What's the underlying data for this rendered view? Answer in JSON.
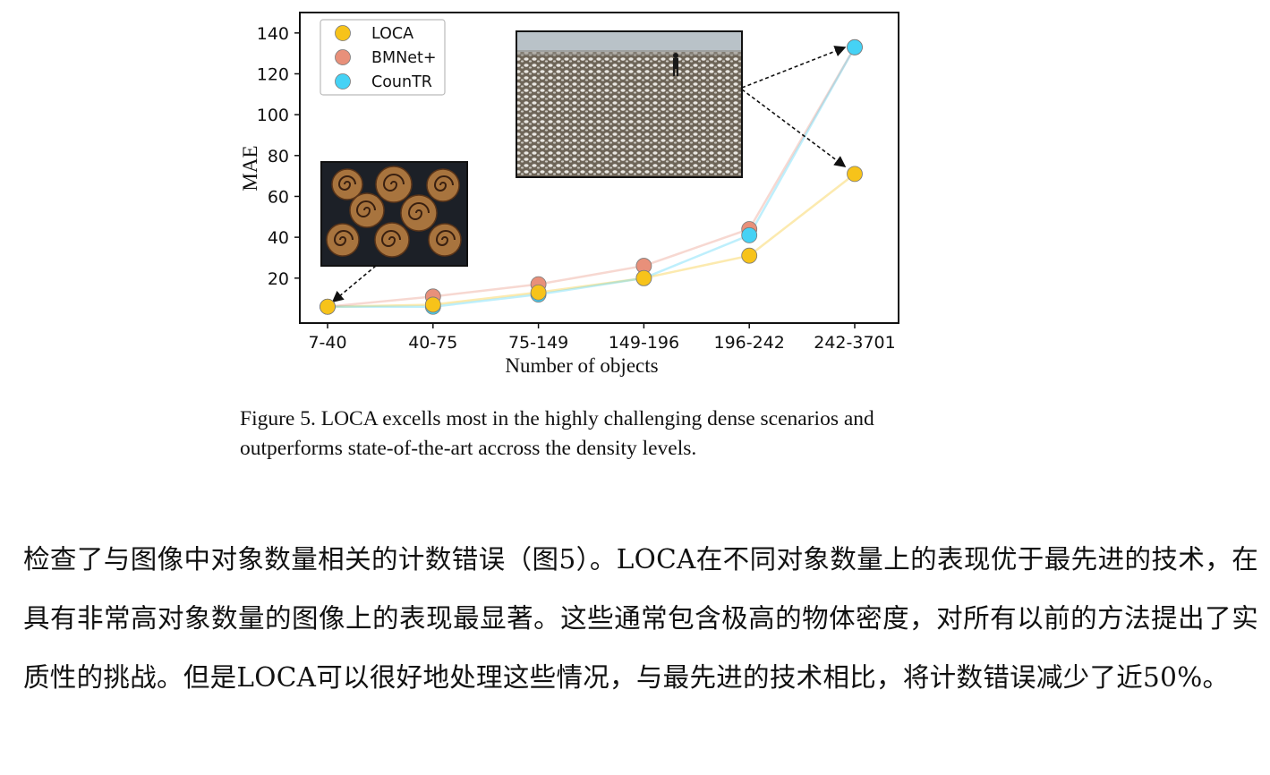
{
  "figure": {
    "caption": "Figure 5. LOCA excells most in the highly challenging dense scenarios and outperforms state-of-the-art accross the density levels."
  },
  "chart_data": {
    "type": "line",
    "xlabel": "Number of objects",
    "ylabel": "MAE",
    "categories": [
      "7-40",
      "40-75",
      "75-149",
      "149-196",
      "196-242",
      "242-3701"
    ],
    "yticks": [
      20,
      40,
      60,
      80,
      100,
      120,
      140
    ],
    "ylim": [
      -2,
      150
    ],
    "legend_position": "top-left",
    "series": [
      {
        "name": "LOCA",
        "color": "#f7c31a",
        "values": [
          6,
          7,
          13,
          20,
          31,
          71
        ]
      },
      {
        "name": "BMNet+",
        "color": "#e8907a",
        "values": [
          6,
          11,
          17,
          26,
          44,
          133
        ]
      },
      {
        "name": "CounTR",
        "color": "#45d2f5",
        "values": [
          6,
          6,
          12,
          20,
          41,
          133
        ]
      }
    ],
    "insets": [
      {
        "name": "cinnamon-rolls-photo",
        "points_to_category": "7-40"
      },
      {
        "name": "seagulls-beach-photo",
        "points_to_category": "242-3701"
      }
    ]
  },
  "body": {
    "paragraph": "检查了与图像中对象数量相关的计数错误（图5）。LOCA在不同对象数量上的表现优于最先进的技术，在具有非常高对象数量的图像上的表现最显著。这些通常包含极高的物体密度，对所有以前的方法提出了实质性的挑战。但是LOCA可以很好地处理这些情况，与最先进的技术相比，将计数错误减少了近50%。"
  }
}
